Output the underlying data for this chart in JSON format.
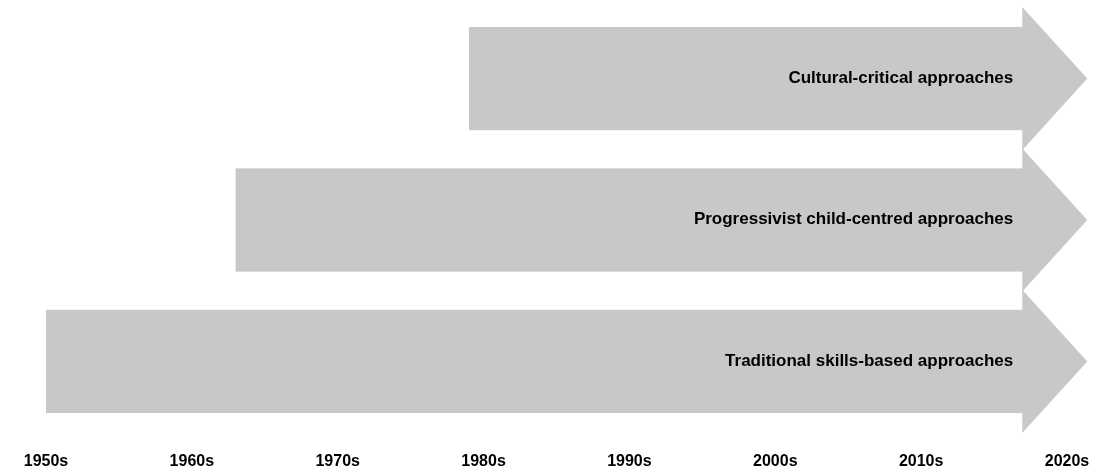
{
  "chart_data": {
    "type": "bar",
    "orientation": "horizontal",
    "categories": [
      "Cultural-critical approaches",
      "Progressivist child-centred approaches",
      "Traditional skills-based approaches"
    ],
    "base": [
      1979,
      1963,
      1950
    ],
    "values": [
      38,
      54,
      67
    ],
    "color": "#c8c8c8",
    "xlim": [
      1950,
      2020
    ],
    "xticks": [
      {
        "value": 1950,
        "label": "1950s"
      },
      {
        "value": 1960,
        "label": "1960s"
      },
      {
        "value": 1970,
        "label": "1970s"
      },
      {
        "value": 1980,
        "label": "1980s"
      },
      {
        "value": 1990,
        "label": "1990s"
      },
      {
        "value": 2000,
        "label": "2000s"
      },
      {
        "value": 2010,
        "label": "2010s"
      },
      {
        "value": 2020,
        "label": "2020s"
      }
    ],
    "tick_labels": "x",
    "grid": false
  }
}
